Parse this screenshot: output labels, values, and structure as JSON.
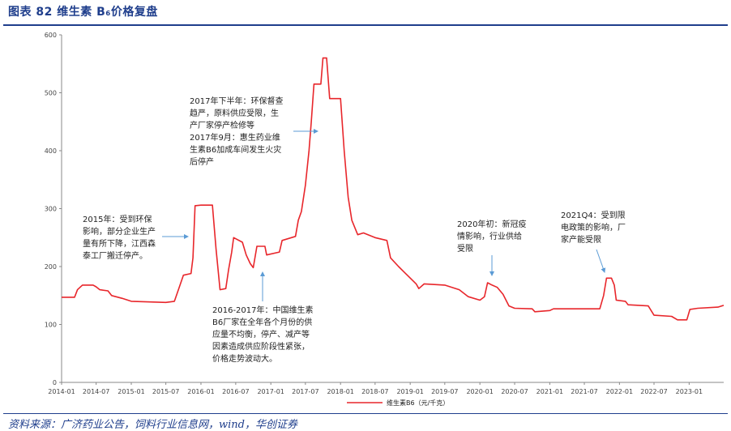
{
  "header": {
    "title": "图表 82 维生素 B₆价格复盘"
  },
  "footer": {
    "source": "资料来源：广济药业公告，饲料行业信息网，wind，华创证券"
  },
  "chart_data": {
    "type": "line",
    "title": "图表 82 维生素 B₆价格复盘",
    "xlabel": "",
    "ylabel": "",
    "ylim": [
      0,
      600
    ],
    "yticks": [
      0,
      100,
      200,
      300,
      400,
      500,
      600
    ],
    "xticks": [
      "2014-01",
      "2014-07",
      "2015-01",
      "2015-07",
      "2016-01",
      "2016-07",
      "2017-01",
      "2017-07",
      "2018-01",
      "2018-07",
      "2019-01",
      "2019-07",
      "2020-01",
      "2020-07",
      "2021-01",
      "2021-07",
      "2022-01",
      "2022-07",
      "2023-01"
    ],
    "x_start": "2014-01",
    "x_end": "2023-07",
    "legend": {
      "label": "维生素B6（元/千克）",
      "position": "bottom-center"
    },
    "colors": {
      "series": "#e8262b",
      "axis": "#888888",
      "annotation_arrow": "#5b9bd5"
    },
    "series": [
      {
        "name": "维生素B6（元/千克）",
        "points": [
          [
            "2014-01-01",
            147
          ],
          [
            "2014-03-10",
            147
          ],
          [
            "2014-03-25",
            160
          ],
          [
            "2014-04-20",
            168
          ],
          [
            "2014-06-15",
            168
          ],
          [
            "2014-07-01",
            165
          ],
          [
            "2014-07-20",
            160
          ],
          [
            "2014-09-01",
            158
          ],
          [
            "2014-09-20",
            150
          ],
          [
            "2014-11-15",
            145
          ],
          [
            "2015-01-01",
            140
          ],
          [
            "2015-07-01",
            138
          ],
          [
            "2015-08-15",
            140
          ],
          [
            "2015-09-10",
            165
          ],
          [
            "2015-10-01",
            185
          ],
          [
            "2015-11-10",
            188
          ],
          [
            "2015-11-20",
            215
          ],
          [
            "2015-12-01",
            305
          ],
          [
            "2016-01-01",
            306
          ],
          [
            "2016-03-01",
            306
          ],
          [
            "2016-03-20",
            230
          ],
          [
            "2016-04-10",
            160
          ],
          [
            "2016-05-10",
            162
          ],
          [
            "2016-05-25",
            195
          ],
          [
            "2016-06-10",
            225
          ],
          [
            "2016-06-20",
            250
          ],
          [
            "2016-08-05",
            242
          ],
          [
            "2016-08-25",
            220
          ],
          [
            "2016-09-15",
            205
          ],
          [
            "2016-10-01",
            198
          ],
          [
            "2016-10-20",
            235
          ],
          [
            "2016-12-01",
            235
          ],
          [
            "2016-12-10",
            220
          ],
          [
            "2017-02-15",
            225
          ],
          [
            "2017-03-01",
            245
          ],
          [
            "2017-05-10",
            252
          ],
          [
            "2017-05-25",
            280
          ],
          [
            "2017-06-10",
            295
          ],
          [
            "2017-07-01",
            340
          ],
          [
            "2017-07-20",
            400
          ],
          [
            "2017-08-01",
            450
          ],
          [
            "2017-08-15",
            515
          ],
          [
            "2017-09-20",
            515
          ],
          [
            "2017-10-01",
            560
          ],
          [
            "2017-10-20",
            560
          ],
          [
            "2017-11-05",
            490
          ],
          [
            "2018-01-01",
            490
          ],
          [
            "2018-01-20",
            400
          ],
          [
            "2018-02-10",
            320
          ],
          [
            "2018-03-01",
            280
          ],
          [
            "2018-04-01",
            255
          ],
          [
            "2018-05-01",
            258
          ],
          [
            "2018-07-01",
            250
          ],
          [
            "2018-09-01",
            245
          ],
          [
            "2018-09-20",
            215
          ],
          [
            "2018-11-01",
            200
          ],
          [
            "2018-12-01",
            190
          ],
          [
            "2019-02-01",
            170
          ],
          [
            "2019-02-15",
            162
          ],
          [
            "2019-03-15",
            170
          ],
          [
            "2019-07-01",
            168
          ],
          [
            "2019-09-15",
            160
          ],
          [
            "2019-11-01",
            148
          ],
          [
            "2020-01-01",
            142
          ],
          [
            "2020-01-25",
            148
          ],
          [
            "2020-02-10",
            172
          ],
          [
            "2020-03-05",
            168
          ],
          [
            "2020-04-01",
            164
          ],
          [
            "2020-05-01",
            152
          ],
          [
            "2020-06-01",
            132
          ],
          [
            "2020-07-01",
            128
          ],
          [
            "2020-10-01",
            127
          ],
          [
            "2020-10-15",
            122
          ],
          [
            "2021-01-01",
            124
          ],
          [
            "2021-01-20",
            127
          ],
          [
            "2021-07-01",
            127
          ],
          [
            "2021-09-20",
            127
          ],
          [
            "2021-10-10",
            150
          ],
          [
            "2021-10-25",
            180
          ],
          [
            "2021-11-20",
            180
          ],
          [
            "2021-12-05",
            168
          ],
          [
            "2021-12-15",
            142
          ],
          [
            "2022-02-01",
            140
          ],
          [
            "2022-02-15",
            134
          ],
          [
            "2022-06-01",
            132
          ],
          [
            "2022-07-01",
            116
          ],
          [
            "2022-10-01",
            114
          ],
          [
            "2022-11-01",
            108
          ],
          [
            "2022-12-20",
            108
          ],
          [
            "2023-01-05",
            126
          ],
          [
            "2023-02-15",
            128
          ],
          [
            "2023-06-01",
            130
          ],
          [
            "2023-07-01",
            133
          ]
        ]
      }
    ],
    "annotations": [
      {
        "id": "a2015",
        "lines": [
          "2015年：受到环保",
          "影响，部分企业生产",
          "量有所下降，江西森",
          "泰工厂搬迁停产。"
        ]
      },
      {
        "id": "a2016",
        "lines": [
          "2016-2017年：中国维生素",
          "B6厂家在全年各个月份的供",
          "应量不均衡，停产、减产等",
          "因素造成供应阶段性紧张，",
          "价格走势波动大。"
        ]
      },
      {
        "id": "a2017",
        "lines": [
          "2017年下半年：环保督查",
          "趋严，原料供应受限，生",
          "产厂家停产检修等",
          "2017年9月：惠生药业维",
          "生素B6加成车间发生火灾",
          "后停产"
        ]
      },
      {
        "id": "a2020",
        "lines": [
          "2020年初：新冠疫",
          "情影响，行业供给",
          "受限"
        ]
      },
      {
        "id": "a2021",
        "lines": [
          "2021Q4：受到限",
          "电政策的影响，厂",
          "家产能受限"
        ]
      }
    ]
  }
}
